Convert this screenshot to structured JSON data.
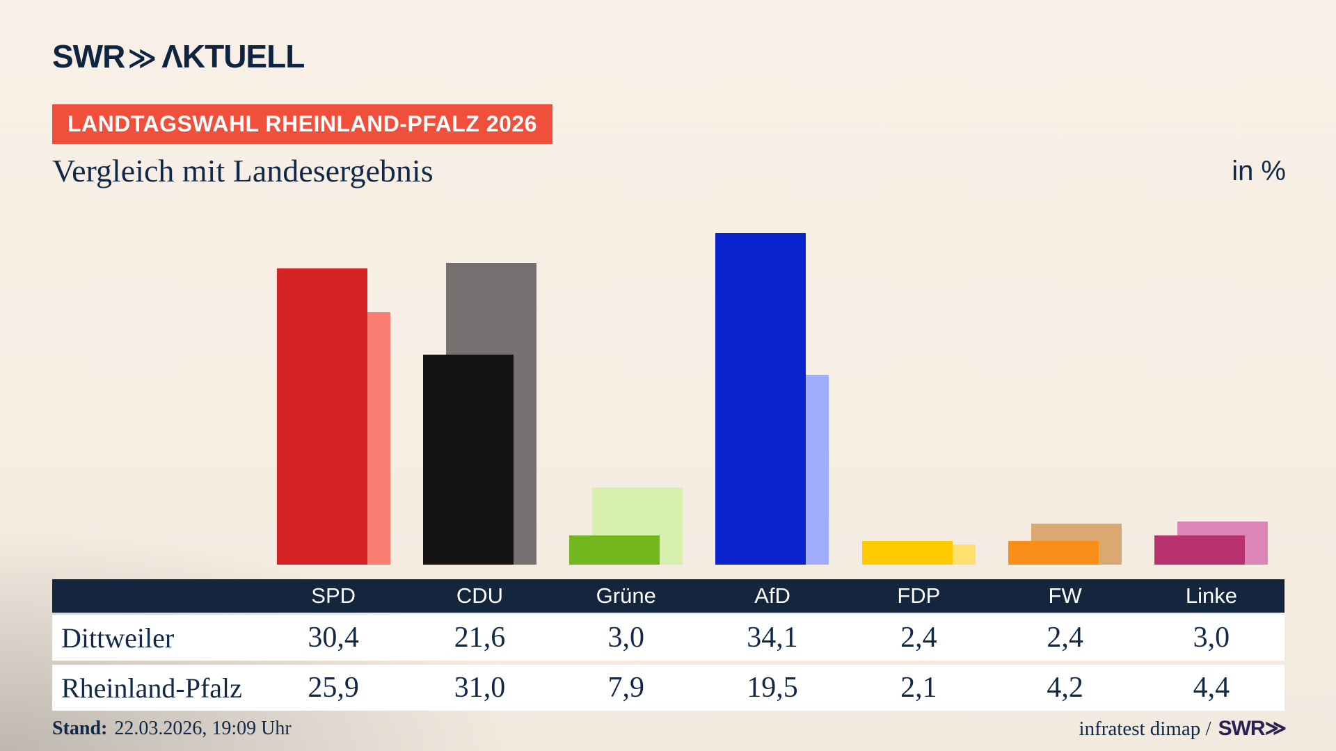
{
  "header": {
    "logo_brand": "SWR",
    "logo_chevrons": "≫",
    "logo_suffix": "ΛKTUELL",
    "badge": "LANDTAGSWAHL RHEINLAND-PFALZ 2026",
    "title": "Vergleich mit Landesergebnis",
    "unit_label": "in %"
  },
  "table": {
    "columns": [
      "SPD",
      "CDU",
      "Grüne",
      "AfD",
      "FDP",
      "FW",
      "Linke"
    ],
    "rows": [
      {
        "label": "Dittweiler",
        "values": [
          "30,4",
          "21,6",
          "3,0",
          "34,1",
          "2,4",
          "2,4",
          "3,0"
        ]
      },
      {
        "label": "Rheinland-Pfalz",
        "values": [
          "25,9",
          "31,0",
          "7,9",
          "19,5",
          "2,1",
          "4,2",
          "4,4"
        ]
      }
    ]
  },
  "footer": {
    "stand_label": "Stand:",
    "stand_value": "22.03.2026, 19:09 Uhr",
    "source": "infratest dimap /",
    "source_logo": "SWR≫"
  },
  "chart_data": {
    "type": "bar",
    "title": "Vergleich mit Landesergebnis",
    "unit": "%",
    "categories": [
      "SPD",
      "CDU",
      "Grüne",
      "AfD",
      "FDP",
      "FW",
      "Linke"
    ],
    "series": [
      {
        "name": "Dittweiler",
        "values": [
          30.4,
          21.6,
          3.0,
          34.1,
          2.4,
          2.4,
          3.0
        ]
      },
      {
        "name": "Rheinland-Pfalz",
        "values": [
          25.9,
          31.0,
          7.9,
          19.5,
          2.1,
          4.2,
          4.4
        ]
      }
    ],
    "ylim": [
      0,
      36
    ],
    "grid": false,
    "legend_position": "none (series readable from table rows)",
    "colors": {
      "SPD": {
        "front": "#d42322",
        "back": "#f97d71"
      },
      "CDU": {
        "front": "#151314",
        "back": "#747170"
      },
      "Grüne": {
        "front": "#72b71d",
        "back": "#d8f0ad"
      },
      "AfD": {
        "front": "#0a23cd",
        "back": "#9fadfc"
      },
      "FDP": {
        "front": "#fecb02",
        "back": "#fee06e"
      },
      "FW": {
        "front": "#fa8d17",
        "back": "#d9a971"
      },
      "Linke": {
        "front": "#b8326f",
        "back": "#db86b7"
      }
    },
    "accent_colors": {
      "badge_red": "#f04f3b",
      "header_navy": "#13263e",
      "text_navy": "#10294a"
    }
  }
}
